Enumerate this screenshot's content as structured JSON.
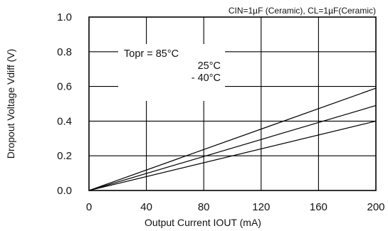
{
  "chart_data": {
    "type": "line",
    "title": "",
    "annotation": "CIN=1µF (Ceramic), CL=1µF(Ceramic)",
    "xlabel": "Output Current IOUT (mA)",
    "ylabel": "Dropout Voltage Vdiff (V)",
    "xlim": [
      0,
      200
    ],
    "ylim": [
      0.0,
      1.0
    ],
    "xticks": [
      "0",
      "40",
      "80",
      "120",
      "160",
      "200"
    ],
    "yticks": [
      "0.0",
      "0.2",
      "0.4",
      "0.6",
      "0.8",
      "1.0"
    ],
    "grid": true,
    "legend_lines": [
      "Topr = 85°C",
      "25°C",
      "- 40°C"
    ],
    "series": [
      {
        "name": "85°C",
        "x": [
          0,
          200
        ],
        "y": [
          0.0,
          0.59
        ]
      },
      {
        "name": "25°C",
        "x": [
          0,
          200
        ],
        "y": [
          0.0,
          0.49
        ]
      },
      {
        "name": "-40°C",
        "x": [
          0,
          200
        ],
        "y": [
          0.0,
          0.4
        ]
      }
    ],
    "line_color": "#000000",
    "grid_color": "#000000"
  }
}
